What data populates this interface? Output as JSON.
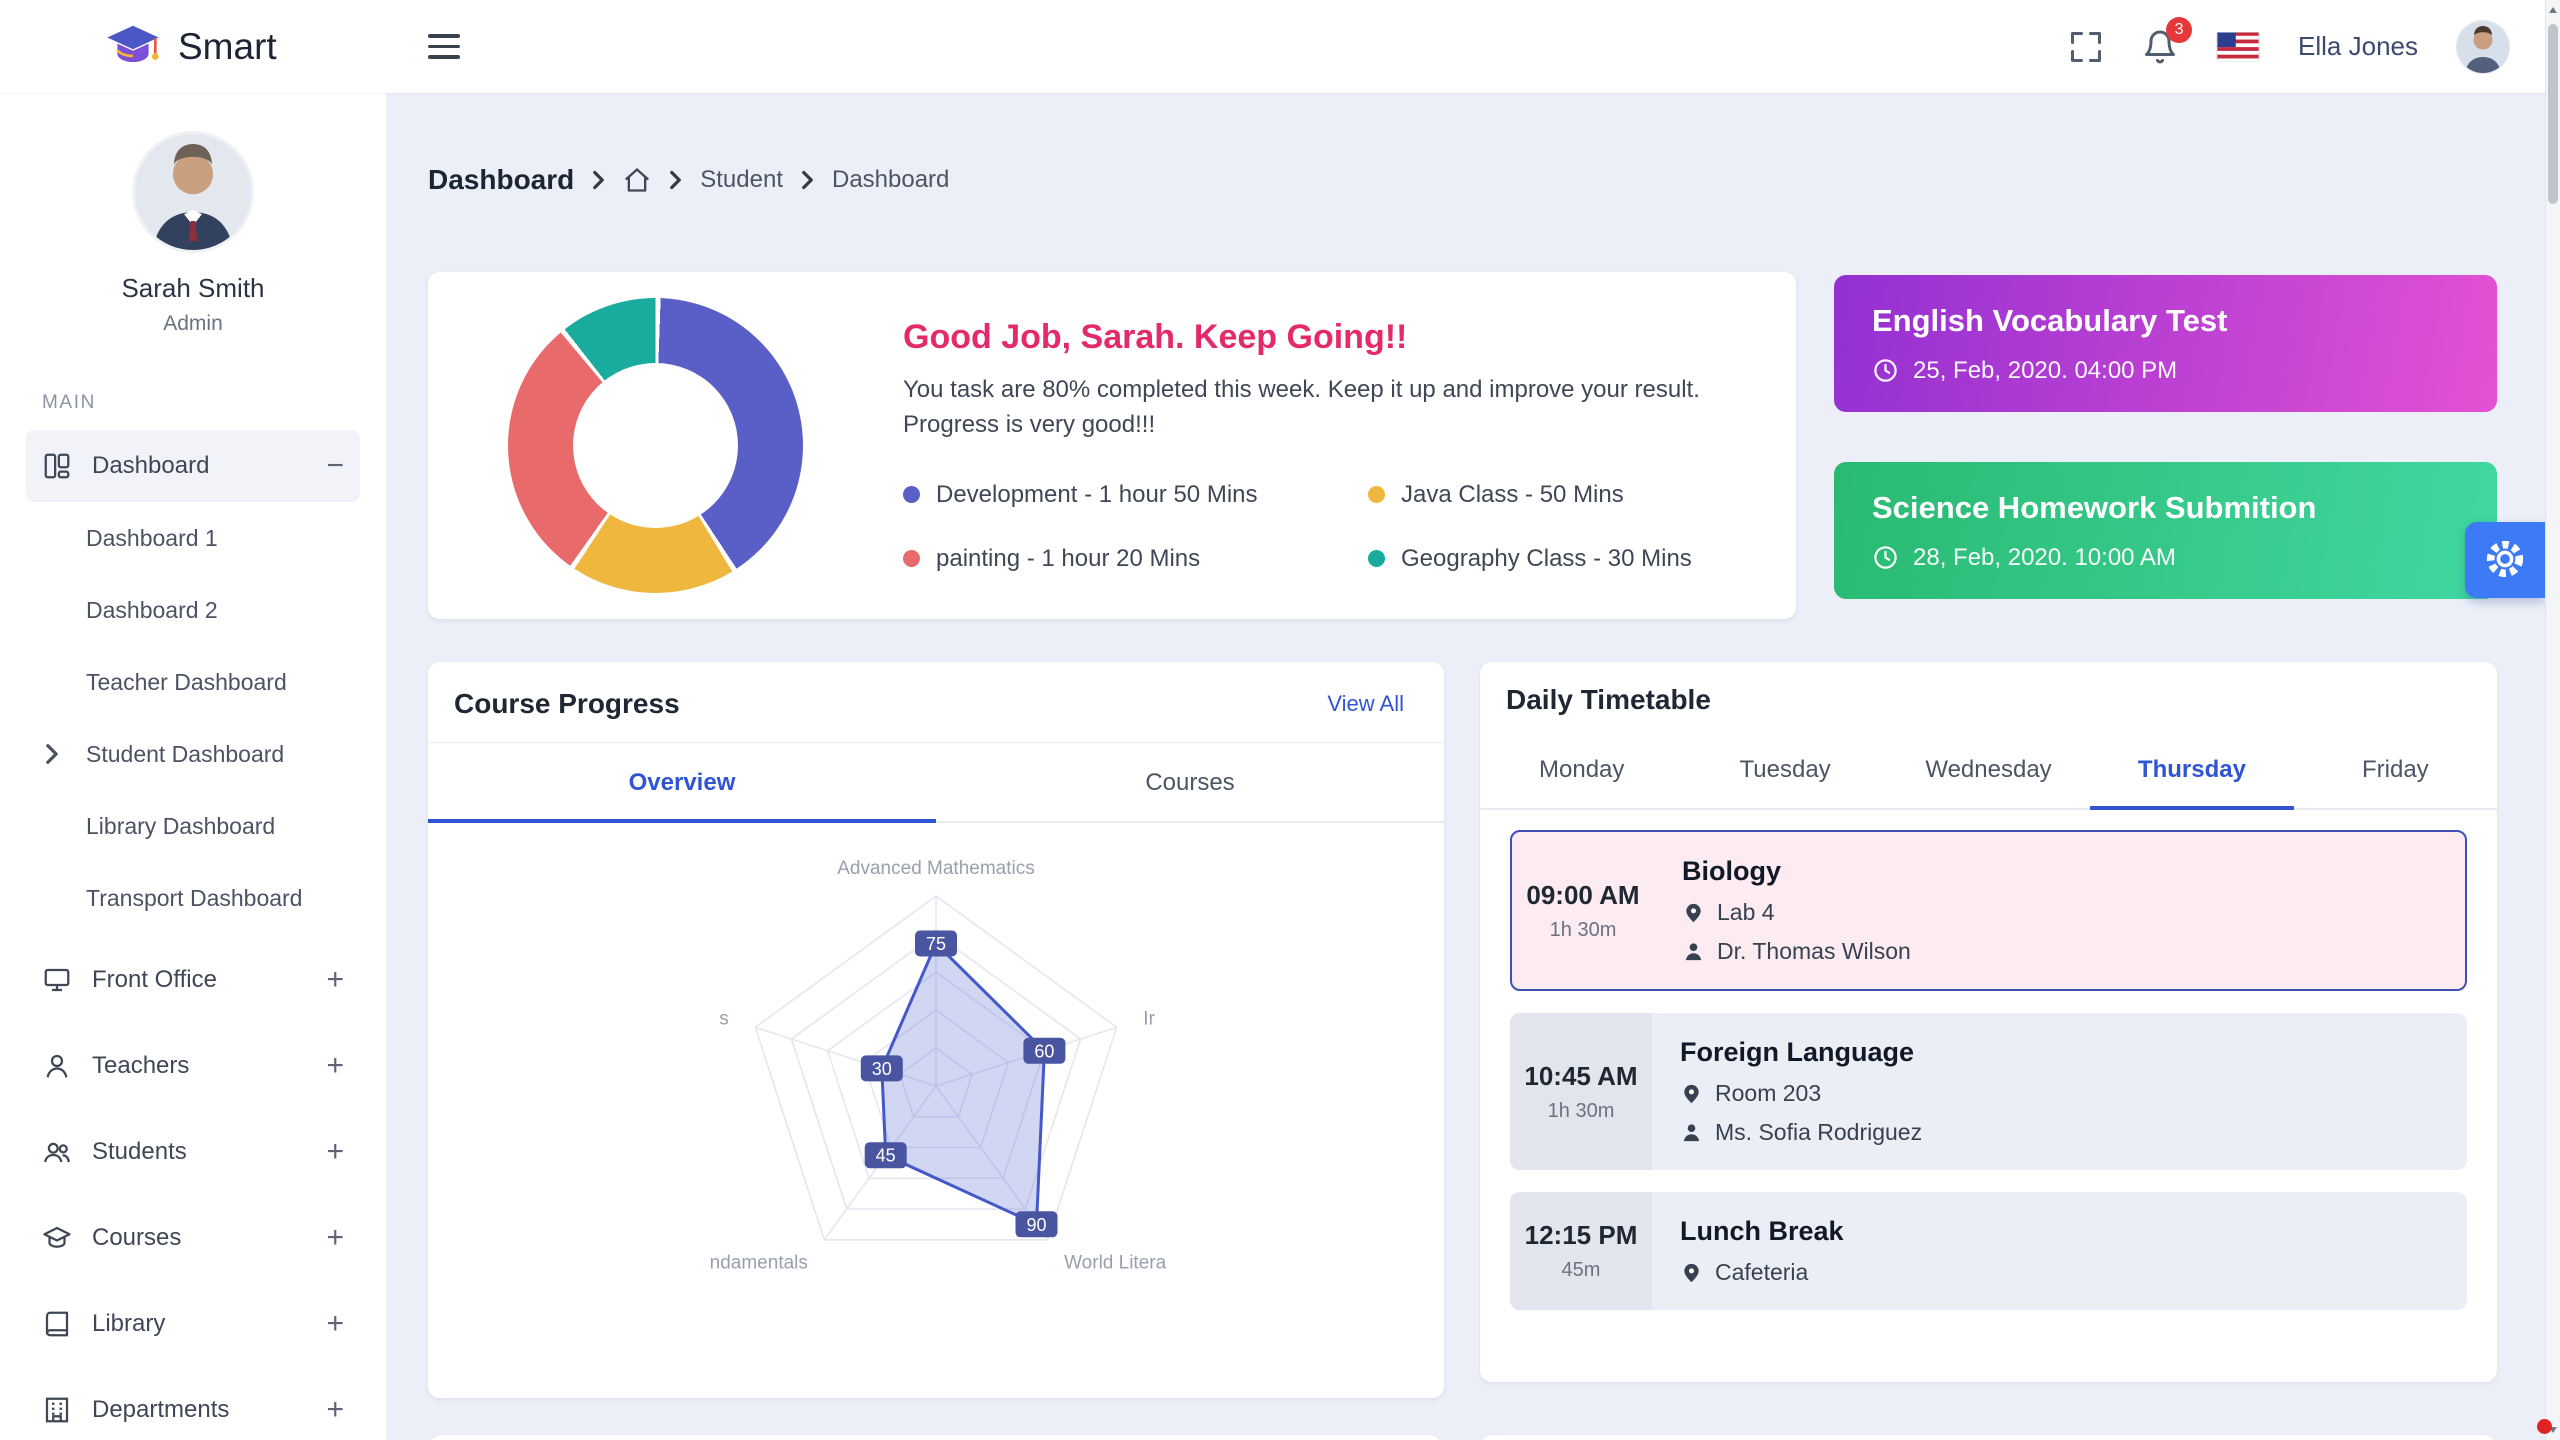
{
  "header": {
    "app_name": "Smart",
    "notification_count": "3",
    "user_name": "Ella Jones"
  },
  "sidebar": {
    "profile_name": "Sarah Smith",
    "profile_role": "Admin",
    "section_label": "MAIN",
    "dashboard_label": "Dashboard",
    "dashboard_children": [
      "Dashboard 1",
      "Dashboard 2",
      "Teacher Dashboard",
      "Student Dashboard",
      "Library Dashboard",
      "Transport Dashboard"
    ],
    "expanded_child": "Student Dashboard",
    "items": [
      {
        "label": "Front Office",
        "icon": "front-office"
      },
      {
        "label": "Teachers",
        "icon": "teacher"
      },
      {
        "label": "Students",
        "icon": "students"
      },
      {
        "label": "Courses",
        "icon": "courses"
      },
      {
        "label": "Library",
        "icon": "library"
      },
      {
        "label": "Departments",
        "icon": "departments"
      }
    ]
  },
  "breadcrumb": {
    "section": "Dashboard",
    "crumb1": "Student",
    "crumb2": "Dashboard"
  },
  "greeting": {
    "title": "Good Job, Sarah. Keep Going!!",
    "body": "You task are 80% completed this week. Keep it up and improve your result. Progress is very good!!!",
    "legend": [
      {
        "label": "Development - 1 hour 50 Mins",
        "color": "#5a5fc7"
      },
      {
        "label": "Java Class - 50 Mins",
        "color": "#efb73e"
      },
      {
        "label": "painting - 1 hour 20 Mins",
        "color": "#e96a6a"
      },
      {
        "label": "Geography Class - 30 Mins",
        "color": "#18ab9e"
      }
    ]
  },
  "events": [
    {
      "title": "English Vocabulary Test",
      "datetime": "25, Feb, 2020. 04:00 PM",
      "gradient": [
        "#9330d2",
        "#e351d3"
      ]
    },
    {
      "title": "Science Homework Submition",
      "datetime": "28, Feb, 2020. 10:00 AM",
      "gradient": [
        "#29ba72",
        "#41d7a0"
      ]
    }
  ],
  "course_progress": {
    "title": "Course Progress",
    "view_all": "View All",
    "tabs": [
      "Overview",
      "Courses"
    ],
    "active_tab": "Overview"
  },
  "timetable": {
    "title": "Daily Timetable",
    "tabs": [
      "Monday",
      "Tuesday",
      "Wednesday",
      "Thursday",
      "Friday"
    ],
    "active_tab": "Thursday",
    "entries": [
      {
        "time": "09:00 AM",
        "duration": "1h 30m",
        "subject": "Biology",
        "location": "Lab 4",
        "teacher": "Dr. Thomas Wilson",
        "active": true
      },
      {
        "time": "10:45 AM",
        "duration": "1h 30m",
        "subject": "Foreign Language",
        "location": "Room 203",
        "teacher": "Ms. Sofia Rodriguez",
        "active": false
      },
      {
        "time": "12:15 PM",
        "duration": "45m",
        "subject": "Lunch Break",
        "location": "Cafeteria",
        "teacher": "",
        "active": false
      }
    ]
  },
  "chart_data": [
    {
      "type": "pie",
      "subtype": "donut",
      "title": "Weekly task time distribution",
      "labels": [
        "Development",
        "Java Class",
        "painting",
        "Geography Class"
      ],
      "values_minutes": [
        110,
        50,
        80,
        30
      ],
      "colors": [
        "#5a5fc7",
        "#efb73e",
        "#e96a6a",
        "#18ab9e"
      ],
      "start_angle_deg": 0,
      "legend_position": "right"
    },
    {
      "type": "radar",
      "title": "Course Progress - Overview",
      "axes": [
        "Advanced Mathematics",
        "Ir",
        "World Litera",
        "ndamentals",
        "s"
      ],
      "values": [
        75,
        60,
        90,
        45,
        30
      ],
      "max": 100,
      "grid_levels": 5,
      "grid": true,
      "fill_color": "#5a6acf",
      "stroke_color": "#4558c9",
      "value_label_bg": "#4a55a2"
    }
  ]
}
